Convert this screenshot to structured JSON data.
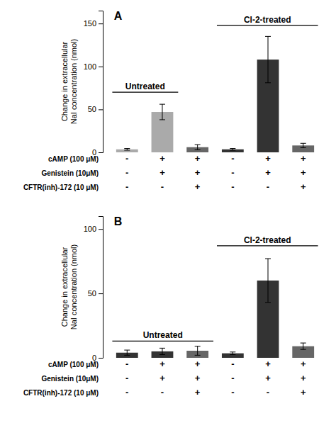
{
  "chart_data": [
    {
      "type": "bar",
      "title": "A",
      "categories": [
        null,
        null,
        null,
        null,
        null,
        null
      ],
      "values": [
        3.5,
        47,
        6,
        3.5,
        108,
        8
      ],
      "errors": [
        1.0,
        9,
        3,
        1.0,
        27,
        2.5
      ],
      "colors": [
        "#aaaaaa",
        "#aaaaaa",
        "#666666",
        "#333333",
        "#333333",
        "#666666"
      ],
      "ylim": [
        0,
        165
      ],
      "yticks": [
        0,
        50,
        100,
        150
      ],
      "ylabel": "Change in extracellular\nNaI concentration (nmol)",
      "annotations": [
        {
          "text": "Untreated",
          "x1": 0.58,
          "x2": 2.45,
          "y": 70
        },
        {
          "text": "Cl-2-treated",
          "x1": 3.55,
          "x2": 6.42,
          "y": 148
        }
      ],
      "treatments": [
        {
          "name": "cAMP (100 μM)",
          "labels": [
            "-",
            "+",
            "+",
            "-",
            "+",
            "+"
          ]
        },
        {
          "name": "Genistein (10μM)",
          "labels": [
            "-",
            "+",
            "+",
            "-",
            "+",
            "+"
          ]
        },
        {
          "name": "CFTR(inh)-172 (10 μM)",
          "labels": [
            "-",
            "-",
            "+",
            "-",
            "-",
            "+"
          ]
        }
      ]
    },
    {
      "type": "bar",
      "title": "B",
      "categories": [
        null,
        null,
        null,
        null,
        null,
        null
      ],
      "values": [
        4,
        5,
        5.5,
        3.5,
        60,
        9
      ],
      "errors": [
        2.0,
        2.5,
        3.5,
        1.0,
        17,
        2.5
      ],
      "colors": [
        "#333333",
        "#333333",
        "#666666",
        "#333333",
        "#333333",
        "#666666"
      ],
      "ylim": [
        0,
        110
      ],
      "yticks": [
        0,
        50,
        100
      ],
      "ylabel": "Change in extracellular\nNaI concentration (nmol)",
      "annotations": [
        {
          "text": "Untreated",
          "x1": 0.58,
          "x2": 3.45,
          "y": 13
        },
        {
          "text": "Cl-2-treated",
          "x1": 3.55,
          "x2": 6.42,
          "y": 87
        }
      ],
      "treatments": [
        {
          "name": "cAMP (100 μM)",
          "labels": [
            "-",
            "+",
            "+",
            "-",
            "+",
            "+"
          ]
        },
        {
          "name": "Genistein (10μM)",
          "labels": [
            "-",
            "+",
            "+",
            "-",
            "+",
            "+"
          ]
        },
        {
          "name": "CFTR(inh)-172 (10 μM)",
          "labels": [
            "-",
            "-",
            "+",
            "-",
            "-",
            "+"
          ]
        }
      ]
    }
  ]
}
